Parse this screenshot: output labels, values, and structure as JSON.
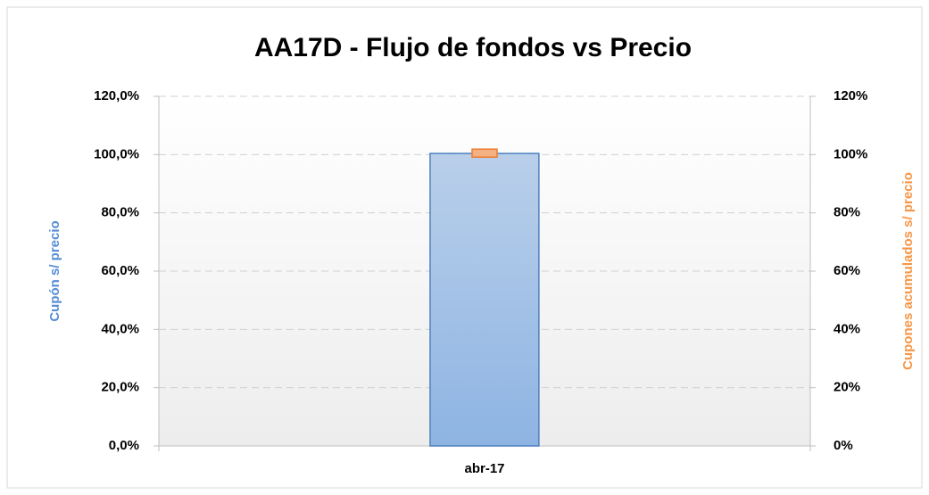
{
  "chart_data": {
    "type": "bar",
    "title": "AA17D - Flujo de fondos vs Precio",
    "y_label": "Cupón s/ precio",
    "y2_label": "Cupones acumulados s/ precio",
    "categories": [
      "abr-17"
    ],
    "series": [
      {
        "color": "#8eb4e3",
        "values": [
          100.4
        ]
      },
      {
        "color": "#f4b183",
        "values": [
          100.5
        ],
        "axis": "y2"
      }
    ],
    "ylim": [
      0,
      120
    ],
    "yticks": [
      {
        "value": 0,
        "label": "0,0%"
      },
      {
        "value": 20,
        "label": "20,0%"
      },
      {
        "value": 40,
        "label": "40,0%"
      },
      {
        "value": 60,
        "label": "60,0%"
      },
      {
        "value": 80,
        "label": "80,0%"
      },
      {
        "value": 100,
        "label": "100,0%"
      },
      {
        "value": 120,
        "label": "120,0%"
      }
    ],
    "y2lim": [
      0,
      120
    ],
    "y2ticks": [
      {
        "value": 0,
        "label": "0%"
      },
      {
        "value": 20,
        "label": "20%"
      },
      {
        "value": 40,
        "label": "40%"
      },
      {
        "value": 60,
        "label": "60%"
      },
      {
        "value": 80,
        "label": "80%"
      },
      {
        "value": 100,
        "label": "100%"
      },
      {
        "value": 120,
        "label": "120%"
      }
    ],
    "grid": true
  }
}
